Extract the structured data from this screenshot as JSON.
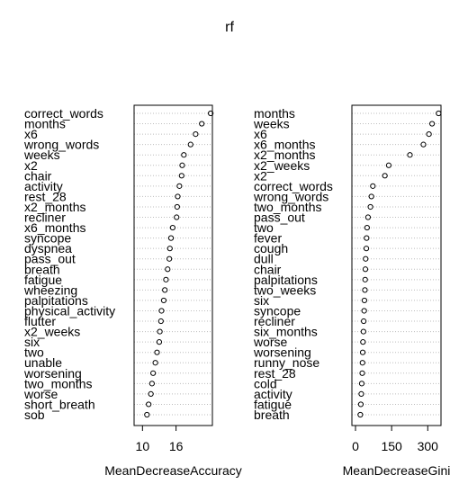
{
  "chart_data": [
    {
      "type": "dotchart",
      "title": "rf",
      "xlabel": "MeanDecreaseAccuracy",
      "xlim": [
        8.5,
        22.5
      ],
      "xticks": [
        10,
        16
      ],
      "grid": "dotted horizontal guide lines",
      "categories": [
        "correct_words",
        "months",
        "x6",
        "wrong_words",
        "weeks",
        "x2",
        "chair",
        "activity",
        "rest_28",
        "x2_months",
        "recliner",
        "x6_months",
        "syncope",
        "dyspnea",
        "pass_out",
        "breath",
        "fatigue",
        "wheezing",
        "palpitations",
        "physical_activity",
        "flutter",
        "x2_weeks",
        "six",
        "two",
        "unable",
        "worsening",
        "two_months",
        "worse",
        "short_breath",
        "sob"
      ],
      "values": [
        22.2,
        20.6,
        19.5,
        18.6,
        17.4,
        17.1,
        17.0,
        16.6,
        16.3,
        16.2,
        16.1,
        15.4,
        15.1,
        14.9,
        14.8,
        14.5,
        14.2,
        14.0,
        13.8,
        13.4,
        13.3,
        13.1,
        13.0,
        12.6,
        12.3,
        11.9,
        11.7,
        11.5,
        11.1,
        10.8
      ]
    },
    {
      "type": "dotchart",
      "title": "",
      "xlabel": "MeanDecreaseGini",
      "xlim": [
        -15,
        355
      ],
      "xticks": [
        0,
        150,
        300
      ],
      "grid": "dotted horizontal guide lines",
      "categories": [
        "months",
        "weeks",
        "x6",
        "x6_months",
        "x2_months",
        "x2_weeks",
        "x2",
        "correct_words",
        "wrong_words",
        "two_months",
        "pass_out",
        "two",
        "fever",
        "cough",
        "dull",
        "chair",
        "palpitations",
        "two_weeks",
        "six",
        "syncope",
        "recliner",
        "six_months",
        "worse",
        "worsening",
        "runny_nose",
        "rest_28",
        "cold",
        "activity",
        "fatigue",
        "breath"
      ],
      "values": [
        345,
        318,
        305,
        282,
        226,
        138,
        122,
        72,
        66,
        62,
        52,
        48,
        46,
        45,
        42,
        41,
        40,
        39,
        37,
        36,
        34,
        33,
        31,
        30,
        29,
        28,
        26,
        24,
        22,
        20
      ]
    }
  ]
}
